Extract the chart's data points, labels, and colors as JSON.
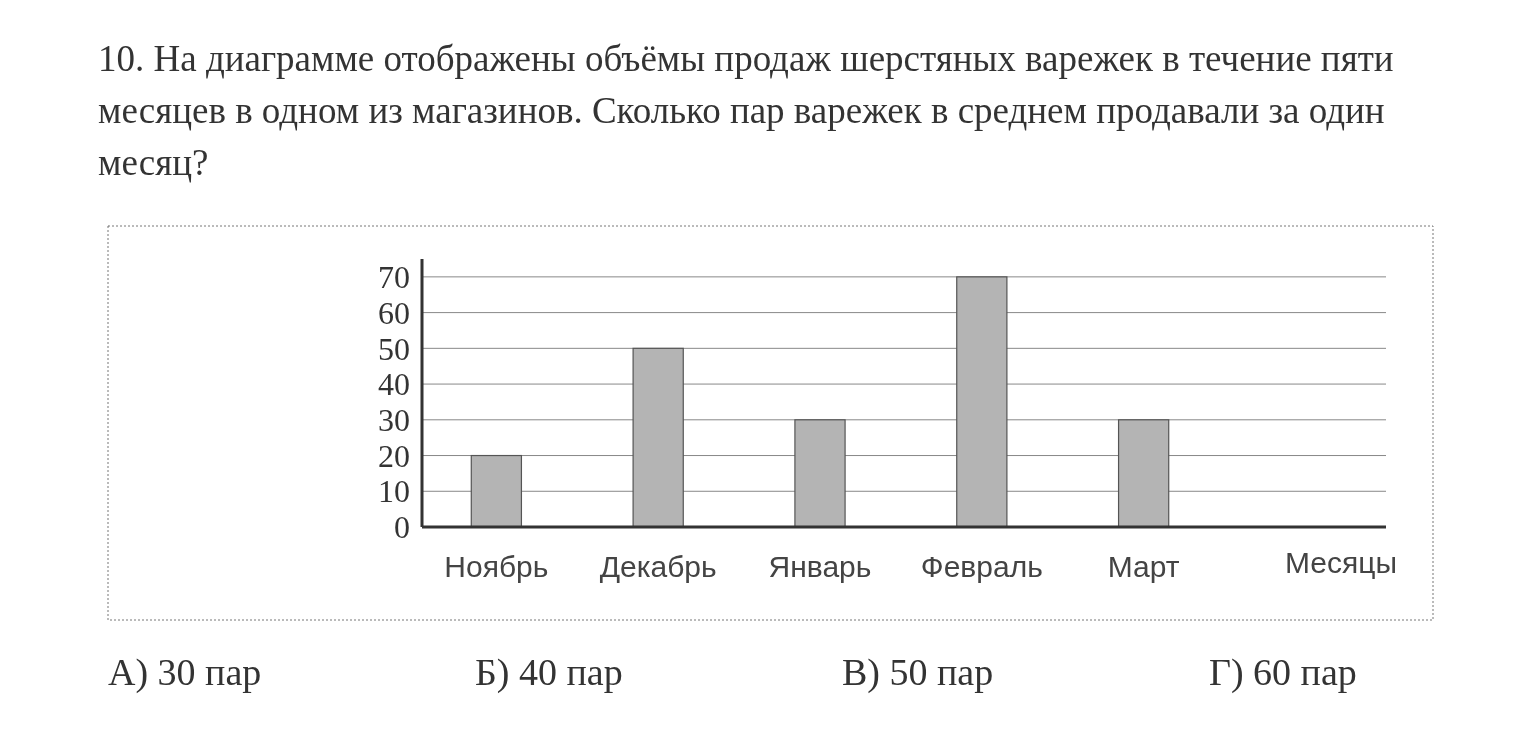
{
  "chart_data": {
    "type": "bar",
    "title": "10. На диаграмме отображены объёмы продаж шерстяных варежек в течение пяти месяцев в одном из магазинов. Сколько пар варежек в среднем продавали за один месяц?",
    "categories": [
      "Ноябрь",
      "Декабрь",
      "Январь",
      "Февраль",
      "Март"
    ],
    "values": [
      20,
      50,
      30,
      70,
      30
    ],
    "color": "#b4b4b4",
    "xlabel": "Месяцы",
    "ylim": [
      0,
      75
    ],
    "yticks": [
      0,
      10,
      20,
      30,
      40,
      50,
      60,
      70
    ],
    "grid": "y",
    "annotations": [
      "А) 30 пар",
      "Б) 40 пар",
      "В) 50 пар",
      "Г) 60 пар"
    ]
  }
}
